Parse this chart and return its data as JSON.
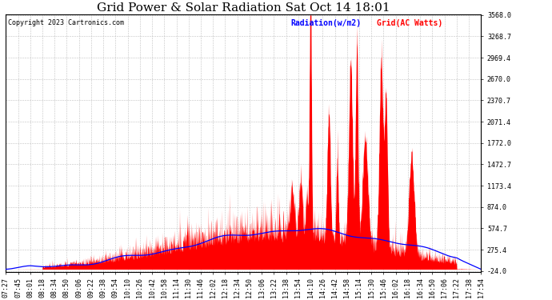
{
  "title": "Grid Power & Solar Radiation Sat Oct 14 18:01",
  "copyright_text": "Copyright 2023 Cartronics.com",
  "legend_radiation": "Radiation(w/m2)",
  "legend_grid": "Grid(AC Watts)",
  "legend_radiation_color": "blue",
  "legend_grid_color": "red",
  "y_min": -24.0,
  "y_max": 3568.0,
  "y_ticks": [
    3568.0,
    3268.7,
    2969.4,
    2670.0,
    2370.7,
    2071.4,
    1772.0,
    1472.7,
    1173.4,
    874.0,
    574.7,
    275.4,
    -24.0
  ],
  "x_tick_labels": [
    "07:27",
    "07:45",
    "08:01",
    "08:18",
    "08:34",
    "08:50",
    "09:06",
    "09:22",
    "09:38",
    "09:54",
    "10:10",
    "10:26",
    "10:42",
    "10:58",
    "11:14",
    "11:30",
    "11:46",
    "12:02",
    "12:18",
    "12:34",
    "12:50",
    "13:06",
    "13:22",
    "13:38",
    "13:54",
    "14:10",
    "14:26",
    "14:42",
    "14:58",
    "15:14",
    "15:30",
    "15:46",
    "16:02",
    "16:18",
    "16:34",
    "16:50",
    "17:06",
    "17:22",
    "17:38",
    "17:54"
  ],
  "background_color": "#ffffff",
  "grid_color": "#bbbbbb",
  "fill_color": "#ff0000",
  "line_color_blue": "#0000ff",
  "title_fontsize": 11,
  "axis_fontsize": 6,
  "copyright_fontsize": 6
}
